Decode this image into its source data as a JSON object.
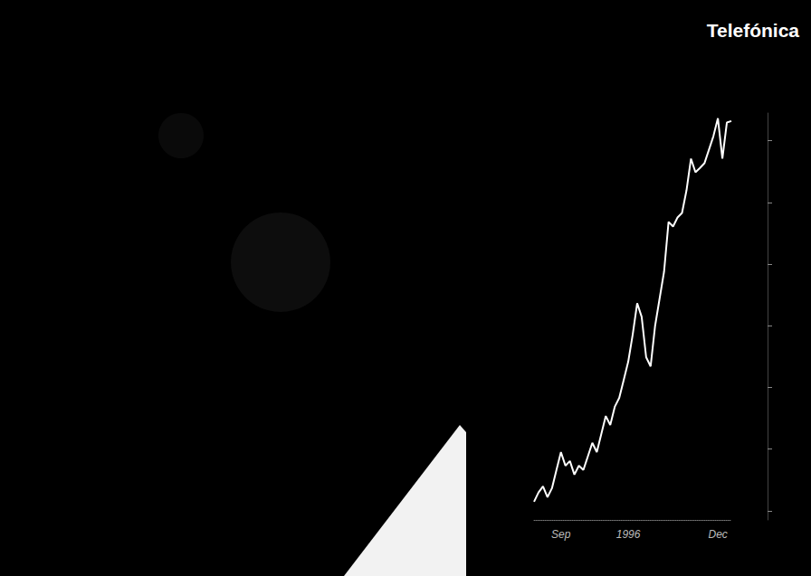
{
  "chart_data": {
    "type": "line",
    "title": "Telefónica",
    "categories": [
      null,
      null,
      null,
      null,
      null,
      null,
      "Sep",
      null,
      null,
      null,
      null,
      null,
      null,
      null,
      null,
      null,
      null,
      null,
      null,
      null,
      null,
      "1996",
      null,
      null,
      null,
      null,
      null,
      null,
      null,
      null,
      null,
      null,
      null,
      null,
      null,
      null,
      null,
      null,
      null,
      null,
      null,
      "Dec",
      null,
      null,
      null
    ],
    "values": [
      2029,
      2059,
      2079,
      2044,
      2073,
      2132,
      2190,
      2146,
      2161,
      2117,
      2146,
      2132,
      2176,
      2220,
      2190,
      2249,
      2307,
      2278,
      2337,
      2366,
      2424,
      2483,
      2571,
      2673,
      2629,
      2498,
      2468,
      2600,
      2688,
      2776,
      2937,
      2922,
      2951,
      2966,
      3039,
      3142,
      3098,
      3112,
      3127,
      3171,
      3215,
      3273,
      3142,
      3259,
      3264
    ],
    "color": "#ffffff",
    "ylim": [
      1970,
      3290
    ],
    "yticks": [
      2000,
      2200,
      2400,
      2600,
      2800,
      3000,
      3200
    ],
    "tick_labels": "x",
    "grid": false
  }
}
